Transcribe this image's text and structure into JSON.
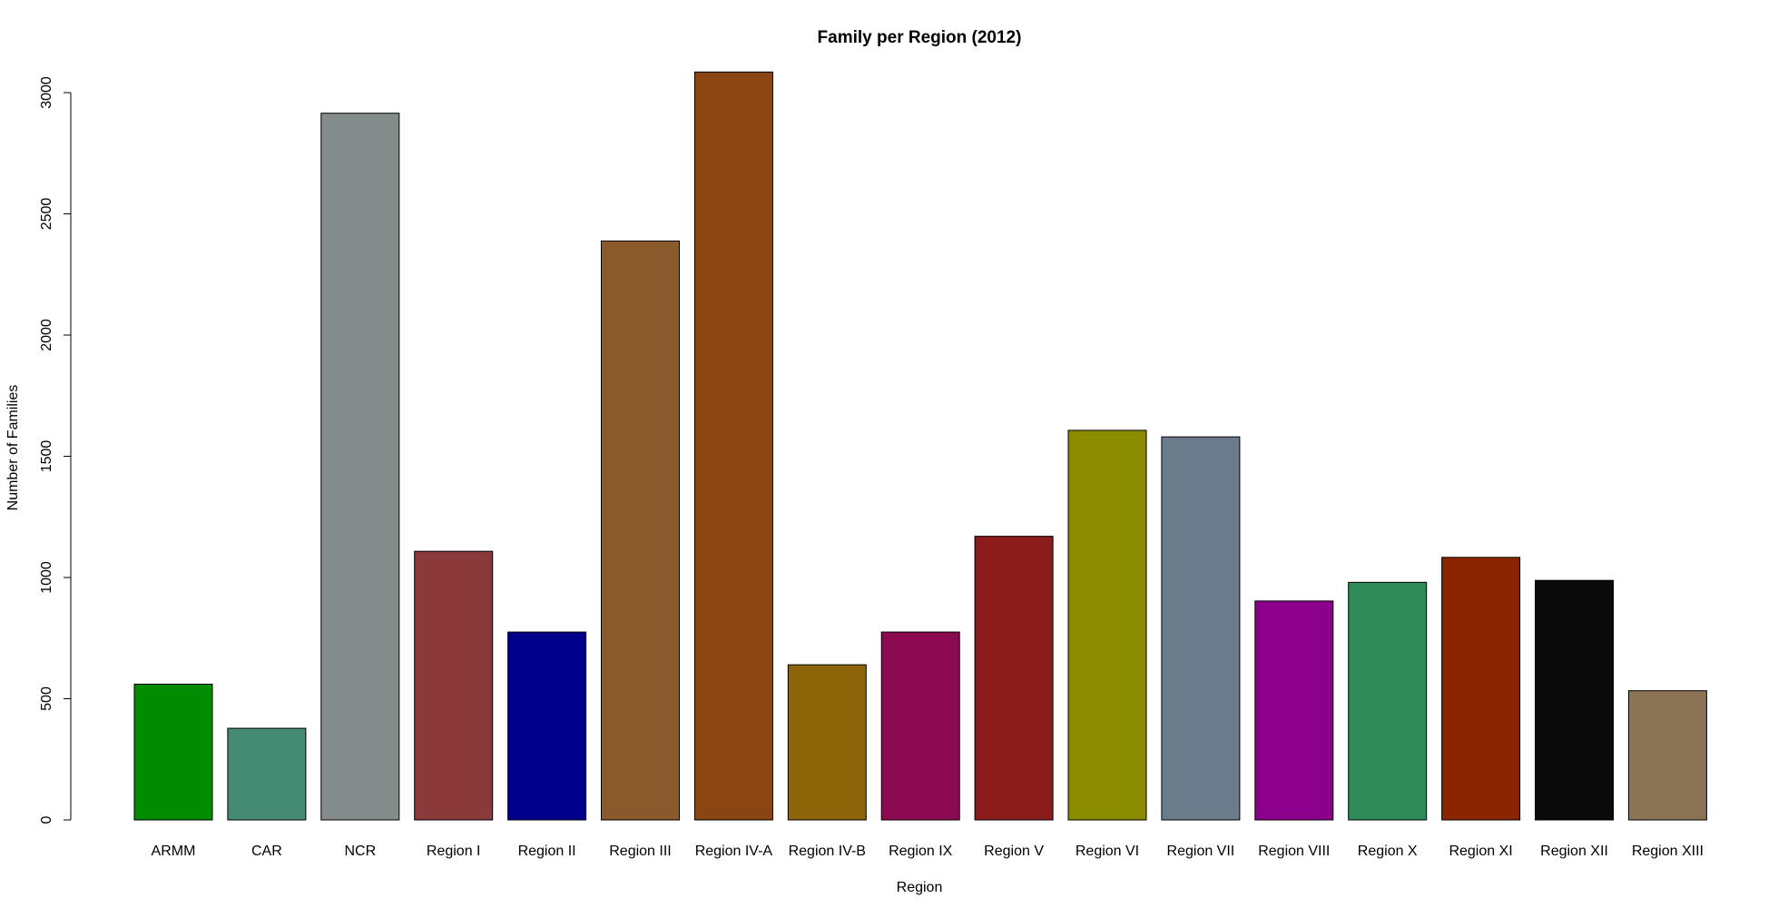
{
  "chart_data": {
    "type": "bar",
    "title": "Family per Region (2012)",
    "xlabel": "Region",
    "ylabel": "Number of Families",
    "ylim": [
      0,
      3100
    ],
    "yticks": [
      0,
      500,
      1000,
      1500,
      2000,
      2500,
      3000
    ],
    "categories": [
      "ARMM",
      "CAR",
      "NCR",
      "Region I",
      "Region II",
      "Region III",
      "Region IV-A",
      "Region IV-B",
      "Region IX",
      "Region V",
      "Region VI",
      "Region VII",
      "Region VIII",
      "Region X",
      "Region XI",
      "Region XII",
      "Region XIII"
    ],
    "values": [
      560,
      378,
      2915,
      1108,
      775,
      2388,
      3085,
      640,
      775,
      1170,
      1607,
      1580,
      903,
      980,
      1083,
      988,
      533
    ],
    "colors": [
      "#008B00",
      "#458B74",
      "#838B8B",
      "#8B3A3A",
      "#00008B",
      "#8B5A2B",
      "#8B4513",
      "#8B6508",
      "#8B0A50",
      "#8B1A1A",
      "#8B8B00",
      "#6C7B8B",
      "#8B008B",
      "#2E8B57",
      "#8B2500",
      "#0A0A0A",
      "#8B7355"
    ],
    "grid": false,
    "legend": "none"
  }
}
